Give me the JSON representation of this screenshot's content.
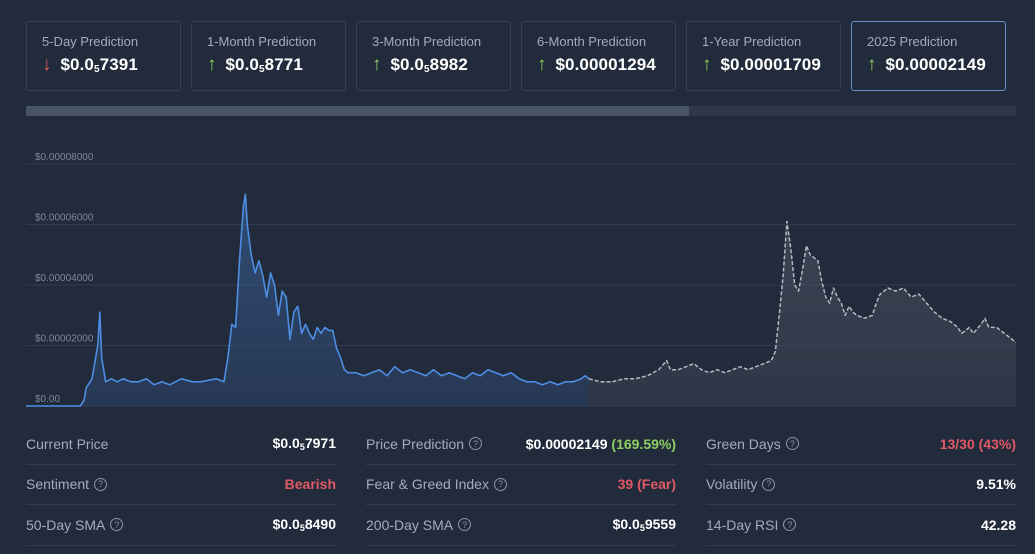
{
  "predictions": [
    {
      "label": "5-Day Prediction",
      "direction": "down",
      "prefix": "$0.0",
      "sub": "5",
      "rest": "7391",
      "active": false
    },
    {
      "label": "1-Month Prediction",
      "direction": "up",
      "prefix": "$0.0",
      "sub": "5",
      "rest": "8771",
      "active": false
    },
    {
      "label": "3-Month Prediction",
      "direction": "up",
      "prefix": "$0.0",
      "sub": "5",
      "rest": "8982",
      "active": false
    },
    {
      "label": "6-Month Prediction",
      "direction": "up",
      "prefix": "$0.00001294",
      "sub": "",
      "rest": "",
      "active": false
    },
    {
      "label": "1-Year Prediction",
      "direction": "up",
      "prefix": "$0.00001709",
      "sub": "",
      "rest": "",
      "active": false
    },
    {
      "label": "2025 Prediction",
      "direction": "up",
      "prefix": "$0.00002149",
      "sub": "",
      "rest": "",
      "active": true
    }
  ],
  "progress": {
    "fraction": 0.67
  },
  "chart_data": {
    "type": "area",
    "yticks": [
      "$0.00",
      "$0.00002000",
      "$0.00004000",
      "$0.00006000",
      "$0.00008000"
    ],
    "ylim": [
      0,
      8e-05
    ],
    "grid": true,
    "series": [
      {
        "kind": "historical",
        "color": "#4d8ee3",
        "points": [
          [
            0,
            0
          ],
          [
            12,
            0
          ],
          [
            22,
            0
          ],
          [
            28,
            0
          ],
          [
            30,
            2e-06
          ],
          [
            31,
            6e-06
          ],
          [
            34,
            9e-06
          ],
          [
            37,
            2e-05
          ],
          [
            38,
            3.1e-05
          ],
          [
            39,
            1.6e-05
          ],
          [
            41,
            8e-06
          ],
          [
            44,
            9e-06
          ],
          [
            47,
            8e-06
          ],
          [
            50,
            9e-06
          ],
          [
            54,
            8e-06
          ],
          [
            58,
            8e-06
          ],
          [
            62,
            9e-06
          ],
          [
            66,
            7e-06
          ],
          [
            70,
            8e-06
          ],
          [
            74,
            7e-06
          ],
          [
            80,
            9e-06
          ],
          [
            86,
            8e-06
          ],
          [
            90,
            8e-06
          ],
          [
            98,
            9e-06
          ],
          [
            102,
            8e-06
          ],
          [
            104,
            1.6e-05
          ],
          [
            106,
            2.7e-05
          ],
          [
            108,
            2.6e-05
          ],
          [
            110,
            4.8e-05
          ],
          [
            112,
            6.6e-05
          ],
          [
            113,
            7e-05
          ],
          [
            114,
            6e-05
          ],
          [
            116,
            5e-05
          ],
          [
            118,
            4.4e-05
          ],
          [
            120,
            4.8e-05
          ],
          [
            122,
            4.3e-05
          ],
          [
            124,
            3.6e-05
          ],
          [
            126,
            4.4e-05
          ],
          [
            128,
            4e-05
          ],
          [
            130,
            3e-05
          ],
          [
            132,
            3.8e-05
          ],
          [
            134,
            3.6e-05
          ],
          [
            136,
            2.2e-05
          ],
          [
            138,
            3.1e-05
          ],
          [
            140,
            3.3e-05
          ],
          [
            142,
            2.4e-05
          ],
          [
            144,
            2.7e-05
          ],
          [
            146,
            2.4e-05
          ],
          [
            148,
            2.2e-05
          ],
          [
            150,
            2.6e-05
          ],
          [
            152,
            2.4e-05
          ],
          [
            154,
            2.6e-05
          ],
          [
            156,
            2.5e-05
          ],
          [
            158,
            2.5e-05
          ],
          [
            160,
            1.9e-05
          ],
          [
            162,
            1.6e-05
          ],
          [
            164,
            1.2e-05
          ],
          [
            166,
            1.1e-05
          ],
          [
            170,
            1.1e-05
          ],
          [
            174,
            1e-05
          ],
          [
            178,
            1.1e-05
          ],
          [
            182,
            1.2e-05
          ],
          [
            186,
            1e-05
          ],
          [
            190,
            1.3e-05
          ],
          [
            194,
            1.1e-05
          ],
          [
            198,
            1.2e-05
          ],
          [
            202,
            1.1e-05
          ],
          [
            206,
            1e-05
          ],
          [
            210,
            1.2e-05
          ],
          [
            214,
            1e-05
          ],
          [
            218,
            1.1e-05
          ],
          [
            222,
            1e-05
          ],
          [
            226,
            9e-06
          ],
          [
            230,
            1.1e-05
          ],
          [
            234,
            1e-05
          ],
          [
            238,
            1.2e-05
          ],
          [
            242,
            1.1e-05
          ],
          [
            246,
            1e-05
          ],
          [
            250,
            1.1e-05
          ],
          [
            254,
            9e-06
          ],
          [
            258,
            8e-06
          ],
          [
            262,
            8e-06
          ],
          [
            266,
            7e-06
          ],
          [
            270,
            8e-06
          ],
          [
            274,
            7e-06
          ],
          [
            278,
            8e-06
          ],
          [
            282,
            8e-06
          ],
          [
            286,
            9e-06
          ],
          [
            288,
            1e-05
          ],
          [
            290,
            9e-06
          ]
        ]
      },
      {
        "kind": "forecast",
        "color": "#b5b9c1",
        "dashed": true,
        "points": [
          [
            290,
            9e-06
          ],
          [
            296,
            8e-06
          ],
          [
            302,
            8e-06
          ],
          [
            308,
            9e-06
          ],
          [
            314,
            9e-06
          ],
          [
            320,
            1e-05
          ],
          [
            326,
            1.2e-05
          ],
          [
            330,
            1.5e-05
          ],
          [
            332,
            1.2e-05
          ],
          [
            336,
            1.2e-05
          ],
          [
            340,
            1.3e-05
          ],
          [
            344,
            1.4e-05
          ],
          [
            348,
            1.2e-05
          ],
          [
            352,
            1.1e-05
          ],
          [
            356,
            1.2e-05
          ],
          [
            360,
            1.1e-05
          ],
          [
            364,
            1.2e-05
          ],
          [
            368,
            1.3e-05
          ],
          [
            372,
            1.2e-05
          ],
          [
            376,
            1.3e-05
          ],
          [
            380,
            1.4e-05
          ],
          [
            384,
            1.5e-05
          ],
          [
            386,
            1.8e-05
          ],
          [
            388,
            3e-05
          ],
          [
            390,
            4.3e-05
          ],
          [
            392,
            6.1e-05
          ],
          [
            394,
            5.2e-05
          ],
          [
            396,
            4e-05
          ],
          [
            398,
            3.8e-05
          ],
          [
            400,
            4.5e-05
          ],
          [
            402,
            5.3e-05
          ],
          [
            404,
            5e-05
          ],
          [
            406,
            4.9e-05
          ],
          [
            408,
            4.8e-05
          ],
          [
            410,
            4.1e-05
          ],
          [
            412,
            3.6e-05
          ],
          [
            414,
            3.4e-05
          ],
          [
            416,
            3.9e-05
          ],
          [
            418,
            3.6e-05
          ],
          [
            420,
            3.4e-05
          ],
          [
            422,
            3e-05
          ],
          [
            424,
            3.3e-05
          ],
          [
            426,
            3.1e-05
          ],
          [
            428,
            3e-05
          ],
          [
            432,
            2.9e-05
          ],
          [
            436,
            3e-05
          ],
          [
            438,
            3.4e-05
          ],
          [
            440,
            3.7e-05
          ],
          [
            442,
            3.8e-05
          ],
          [
            444,
            3.9e-05
          ],
          [
            448,
            3.8e-05
          ],
          [
            452,
            3.9e-05
          ],
          [
            456,
            3.6e-05
          ],
          [
            460,
            3.7e-05
          ],
          [
            464,
            3.4e-05
          ],
          [
            468,
            3.1e-05
          ],
          [
            472,
            2.9e-05
          ],
          [
            476,
            2.8e-05
          ],
          [
            480,
            2.6e-05
          ],
          [
            482,
            2.4e-05
          ],
          [
            486,
            2.6e-05
          ],
          [
            488,
            2.4e-05
          ],
          [
            492,
            2.7e-05
          ],
          [
            494,
            2.9e-05
          ],
          [
            496,
            2.6e-05
          ],
          [
            500,
            2.6e-05
          ],
          [
            504,
            2.4e-05
          ],
          [
            508,
            2.2e-05
          ],
          [
            510,
            2.1e-05
          ]
        ]
      }
    ],
    "xlim": [
      0,
      510
    ]
  },
  "stats": [
    [
      {
        "name": "Current Price",
        "help": false,
        "value": "$0.0",
        "sub": "5",
        "rest": "7971",
        "color": "white"
      },
      {
        "name": "Sentiment",
        "help": true,
        "value": "Bearish",
        "color": "red"
      },
      {
        "name": "50-Day SMA",
        "help": true,
        "value": "$0.0",
        "sub": "5",
        "rest": "8490",
        "color": "white"
      }
    ],
    [
      {
        "name": "Price Prediction",
        "help": true,
        "value": "$0.00002149",
        "extra": "(169.59%)",
        "color": "white"
      },
      {
        "name": "Fear & Greed Index",
        "help": true,
        "value": "39 (Fear)",
        "color": "red"
      },
      {
        "name": "200-Day SMA",
        "help": true,
        "value": "$0.0",
        "sub": "5",
        "rest": "9559",
        "color": "white"
      }
    ],
    [
      {
        "name": "Green Days",
        "help": true,
        "value": "13/30 (43%)",
        "color": "red"
      },
      {
        "name": "Volatility",
        "help": true,
        "value": "9.51%",
        "color": "white"
      },
      {
        "name": "14-Day RSI",
        "help": true,
        "value": "42.28",
        "color": "white"
      }
    ]
  ]
}
